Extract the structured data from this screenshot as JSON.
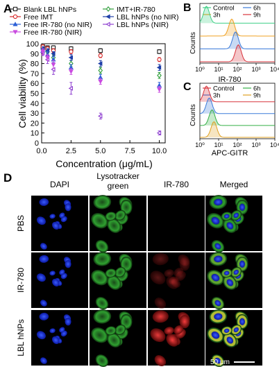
{
  "panel_letters": {
    "a": "A",
    "b": "B",
    "c": "C",
    "d": "D"
  },
  "chart_data": [
    {
      "type": "scatter",
      "panel": "A",
      "xlabel": "Concentration (μg/mL)",
      "ylabel": "Cell viability (%)",
      "xlim": [
        0,
        10.5
      ],
      "ylim": [
        0,
        100
      ],
      "xticks": [
        "0.0",
        "2.5",
        "5.0",
        "7.5",
        "10.0"
      ],
      "xtick_values": [
        0,
        2.5,
        5,
        7.5,
        10
      ],
      "yticks": [
        "0",
        "10",
        "20",
        "30",
        "40",
        "50",
        "60",
        "70",
        "80",
        "90",
        "100"
      ],
      "ytick_values": [
        0,
        10,
        20,
        30,
        40,
        50,
        60,
        70,
        80,
        90,
        100
      ],
      "legend_position": "top",
      "x": [
        0.1,
        0.5,
        1,
        2.5,
        5,
        10
      ],
      "series": [
        {
          "name": "Blank LBL hNPs",
          "color": "#222222",
          "marker": "square-open",
          "values": [
            97,
            96,
            96,
            95,
            93,
            92
          ],
          "errors": [
            2,
            2,
            2,
            2,
            2,
            2
          ]
        },
        {
          "name": "IMT+IR-780",
          "color": "#2e9e3a",
          "marker": "diamond-open",
          "values": [
            94,
            92,
            86,
            80,
            73,
            68
          ],
          "errors": [
            2,
            2,
            3,
            3,
            3,
            3
          ]
        },
        {
          "name": "Free IMT",
          "color": "#d62728",
          "marker": "circle-open",
          "values": [
            97,
            95,
            93,
            92,
            88,
            84
          ],
          "errors": [
            2,
            2,
            2,
            2,
            2,
            2
          ]
        },
        {
          "name": "LBL hNPs (no NIR)",
          "color": "#1f3fa8",
          "marker": "left-triangle",
          "values": [
            95,
            93,
            90,
            86,
            80,
            76
          ],
          "errors": [
            2,
            2,
            2,
            3,
            3,
            3
          ]
        },
        {
          "name": "Free IR-780 (no NIR)",
          "color": "#2b5fd6",
          "marker": "triangle-up",
          "values": [
            93,
            89,
            84,
            76,
            66,
            58
          ],
          "errors": [
            2,
            3,
            3,
            3,
            3,
            3
          ]
        },
        {
          "name": "LBL hNPs (NIR)",
          "color": "#8e3fd0",
          "marker": "left-triangle-open",
          "values": [
            91,
            84,
            74,
            55,
            27,
            10
          ],
          "errors": [
            3,
            4,
            5,
            6,
            3,
            2
          ]
        },
        {
          "name": "Free IR-780 (NIR)",
          "color": "#c94be0",
          "marker": "triangle-down",
          "values": [
            92,
            86,
            79,
            72,
            62,
            54
          ],
          "errors": [
            3,
            3,
            4,
            3,
            3,
            3
          ]
        }
      ]
    },
    {
      "type": "line",
      "panel": "B",
      "xlabel": "IR-780",
      "ylabel": "Counts",
      "xlim_log": [
        0,
        4
      ],
      "xticks": [
        "10⁰",
        "10¹",
        "10²",
        "10³",
        "10⁴"
      ],
      "legend_position": "top",
      "series": [
        {
          "name": "Control",
          "color": "#3fcf86",
          "peak_log": 0.35
        },
        {
          "name": "3h",
          "color": "#f0a020",
          "peak_log": 1.7
        },
        {
          "name": "6h",
          "color": "#3a7ad9",
          "peak_log": 1.9
        },
        {
          "name": "9h",
          "color": "#d8343c",
          "peak_log": 2.05
        }
      ]
    },
    {
      "type": "line",
      "panel": "C",
      "xlabel": "APC-GITR",
      "ylabel": "Counts",
      "xlim_log": [
        0,
        4
      ],
      "xticks": [
        "10⁰",
        "10¹",
        "10²",
        "10³",
        "10⁴"
      ],
      "legend_position": "top",
      "series": [
        {
          "name": "Control",
          "color": "#d8343c",
          "peak_log": 0.35
        },
        {
          "name": "3h",
          "color": "#3a7ad9",
          "peak_log": 0.5
        },
        {
          "name": "6h",
          "color": "#33b046",
          "peak_log": 0.65
        },
        {
          "name": "9h",
          "color": "#e0a020",
          "peak_log": 0.75
        }
      ]
    }
  ],
  "panel_d": {
    "columns": [
      "DAPI",
      "Lysotracker\ngreen",
      "IR-780",
      "Merged"
    ],
    "rows": [
      "PBS",
      "IR-780",
      "LBL hNPs"
    ],
    "scale_bar": "50 μm"
  }
}
